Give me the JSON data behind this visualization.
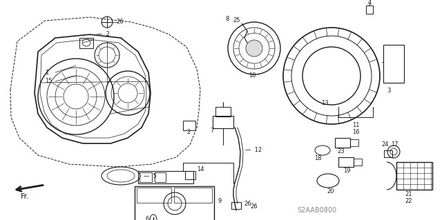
{
  "bg_color": "#ffffff",
  "line_color": "#1a1a1a",
  "watermark": "S2AAB0800",
  "fig_w": 6.4,
  "fig_h": 3.19,
  "dpi": 100
}
